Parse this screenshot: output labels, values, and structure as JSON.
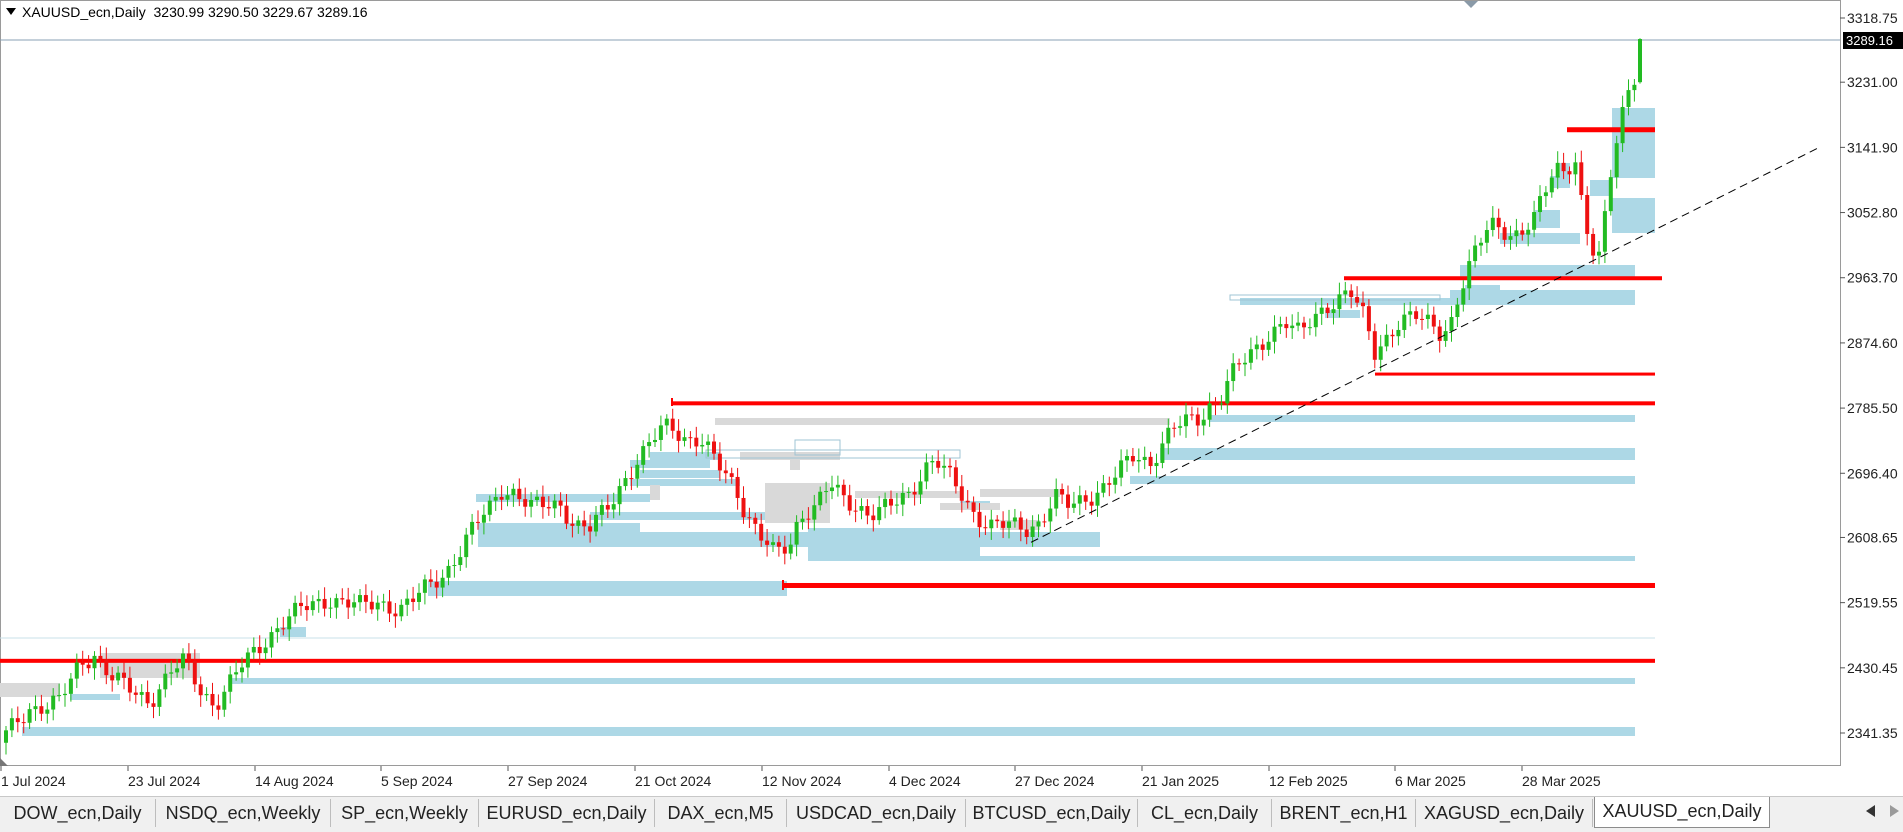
{
  "header": {
    "symbol": "XAUUSD_ecn,Daily",
    "ohlc": "3230.99 3290.50 3229.67 3289.16"
  },
  "price_axis": {
    "labels": [
      "3318.75",
      "3231.00",
      "3141.90",
      "3052.80",
      "2963.70",
      "2874.60",
      "2785.50",
      "2696.40",
      "2608.65",
      "2519.55",
      "2430.45",
      "2341.35"
    ],
    "current_price": "3289.16"
  },
  "time_axis": {
    "labels": [
      "1 Jul 2024",
      "23 Jul 2024",
      "14 Aug 2024",
      "5 Sep 2024",
      "27 Sep 2024",
      "21 Oct 2024",
      "12 Nov 2024",
      "4 Dec 2024",
      "27 Dec 2024",
      "21 Jan 2025",
      "12 Feb 2025",
      "6 Mar 2025",
      "28 Mar 2025"
    ]
  },
  "colors": {
    "bull": "#22bb22",
    "bear": "#ee1111",
    "level_line": "#ff0000",
    "zone_blue": "#add8e6",
    "zone_gray": "#d9d9d9",
    "trendline": "#000000",
    "current_price_tag": "#000000"
  },
  "levels": [
    3166,
    2963,
    2832,
    2792,
    2543,
    2440
  ],
  "trendline": {
    "from": {
      "date": "27 Dec 2024",
      "price": 2602
    },
    "to": {
      "date": "24 Apr 2025",
      "price": 3141
    }
  },
  "tabs": [
    {
      "label": "DOW_ecn,Daily",
      "active": false
    },
    {
      "label": "NSDQ_ecn,Weekly",
      "active": false
    },
    {
      "label": "SP_ecn,Weekly",
      "active": false
    },
    {
      "label": "EURUSD_ecn,Daily",
      "active": false
    },
    {
      "label": "DAX_ecn,M5",
      "active": false
    },
    {
      "label": "USDCAD_ecn,Daily",
      "active": false
    },
    {
      "label": "BTCUSD_ecn,Daily",
      "active": false
    },
    {
      "label": "CL_ecn,Daily",
      "active": false
    },
    {
      "label": "BRENT_ecn,H1",
      "active": false
    },
    {
      "label": "XAGUSD_ecn,Daily",
      "active": false
    },
    {
      "label": "XAUUSD_ecn,Daily",
      "active": true
    }
  ],
  "icons": {
    "tab_scroll_left": "left-triangle-icon",
    "tab_scroll_right": "right-triangle-icon",
    "shift_marker": "chart-shift-marker-icon"
  }
}
